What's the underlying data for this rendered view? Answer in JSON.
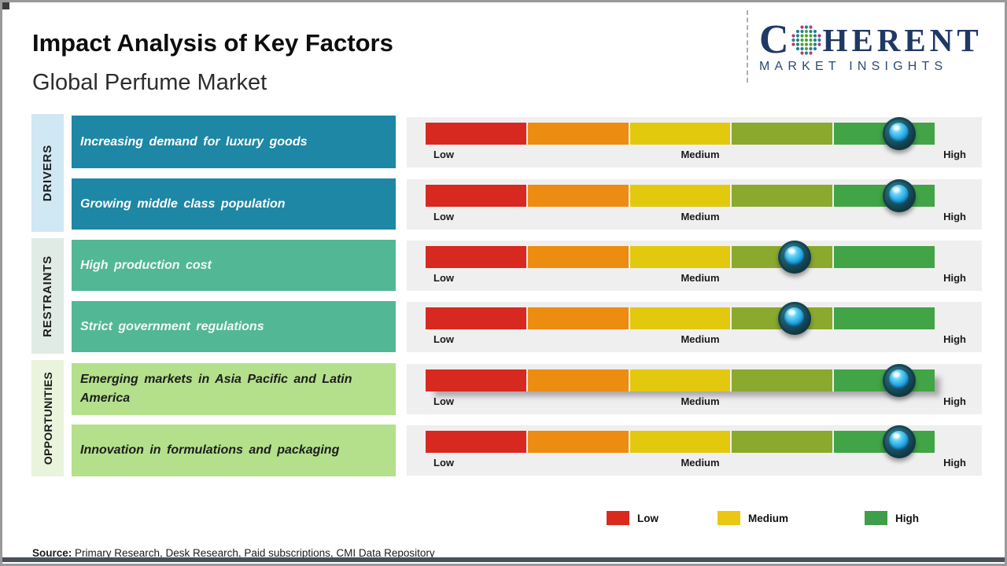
{
  "header": {
    "title": "Impact Analysis of Key Factors",
    "subtitle": "Global Perfume Market"
  },
  "logo": {
    "brand_first_letter": "C",
    "brand_rest": "HERENT",
    "tagline": "MARKET INSIGHTS",
    "brand_color": "#1f3864"
  },
  "groups": [
    {
      "label": "DRIVERS",
      "strip_color": "#cfe8f3",
      "box_color": "#1d87a5",
      "text_color": "#ffffff"
    },
    {
      "label": "RESTRAINTS",
      "strip_color": "#e0ebe5",
      "box_color": "#52b795",
      "text_color": "#ffffff"
    },
    {
      "label": "OPPORTUNITIES",
      "strip_color": "#eaf3dc",
      "box_color": "#b4e08c",
      "text_color": "#1d1d1d"
    }
  ],
  "rows": [
    {
      "group": "DRIVERS",
      "factor": "Increasing demand for luxury goods",
      "impact_pct": 93,
      "impact_level": "High"
    },
    {
      "group": "DRIVERS",
      "factor": "Growing middle class population",
      "impact_pct": 93,
      "impact_level": "High"
    },
    {
      "group": "RESTRAINTS",
      "factor": "High production cost",
      "impact_pct": 72.5,
      "impact_level": "Medium-High"
    },
    {
      "group": "RESTRAINTS",
      "factor": "Strict government regulations",
      "impact_pct": 72.5,
      "impact_level": "Medium-High"
    },
    {
      "group": "OPPORTUNITIES",
      "factor": "Emerging markets in Asia Pacific and Latin America",
      "impact_pct": 93,
      "impact_level": "High"
    },
    {
      "group": "OPPORTUNITIES",
      "factor": "Innovation in formulations and packaging",
      "impact_pct": 93,
      "impact_level": "High"
    }
  ],
  "bar": {
    "segment_colors": [
      "#d7291f",
      "#ec8c11",
      "#e2c90e",
      "#8ba92d",
      "#41a447"
    ],
    "labels": {
      "low": "Low",
      "medium": "Medium",
      "high": "High"
    },
    "panel_color": "#f0eff0"
  },
  "legend": {
    "items": [
      {
        "label": "Low",
        "color": "#da2a1c"
      },
      {
        "label": "Medium",
        "color": "#e9c712"
      },
      {
        "label": "High",
        "color": "#3f9e48"
      }
    ]
  },
  "source": {
    "label": "Source:",
    "text": " Primary Research, Desk Research, Paid subscriptions, CMI Data Repository"
  },
  "chart_data": {
    "type": "bar",
    "title": "Impact Analysis of Key Factors",
    "subtitle": "Global Perfume Market",
    "scale_labels": [
      "Low",
      "Medium",
      "High"
    ],
    "scale_range": [
      0,
      100
    ],
    "grid": false,
    "legend_position": "bottom-right",
    "legend_entries": [
      "Low",
      "Medium",
      "High"
    ],
    "categories": [
      "Increasing demand for luxury goods",
      "Growing middle class population",
      "High production cost",
      "Strict government regulations",
      "Emerging markets in Asia Pacific and Latin America",
      "Innovation in formulations and packaging"
    ],
    "category_groups": [
      "DRIVERS",
      "DRIVERS",
      "RESTRAINTS",
      "RESTRAINTS",
      "OPPORTUNITIES",
      "OPPORTUNITIES"
    ],
    "series": [
      {
        "name": "Impact",
        "values": [
          93,
          93,
          72.5,
          72.5,
          93,
          93
        ],
        "labels": [
          "High",
          "High",
          "Medium-High",
          "Medium-High",
          "High",
          "High"
        ]
      }
    ]
  }
}
